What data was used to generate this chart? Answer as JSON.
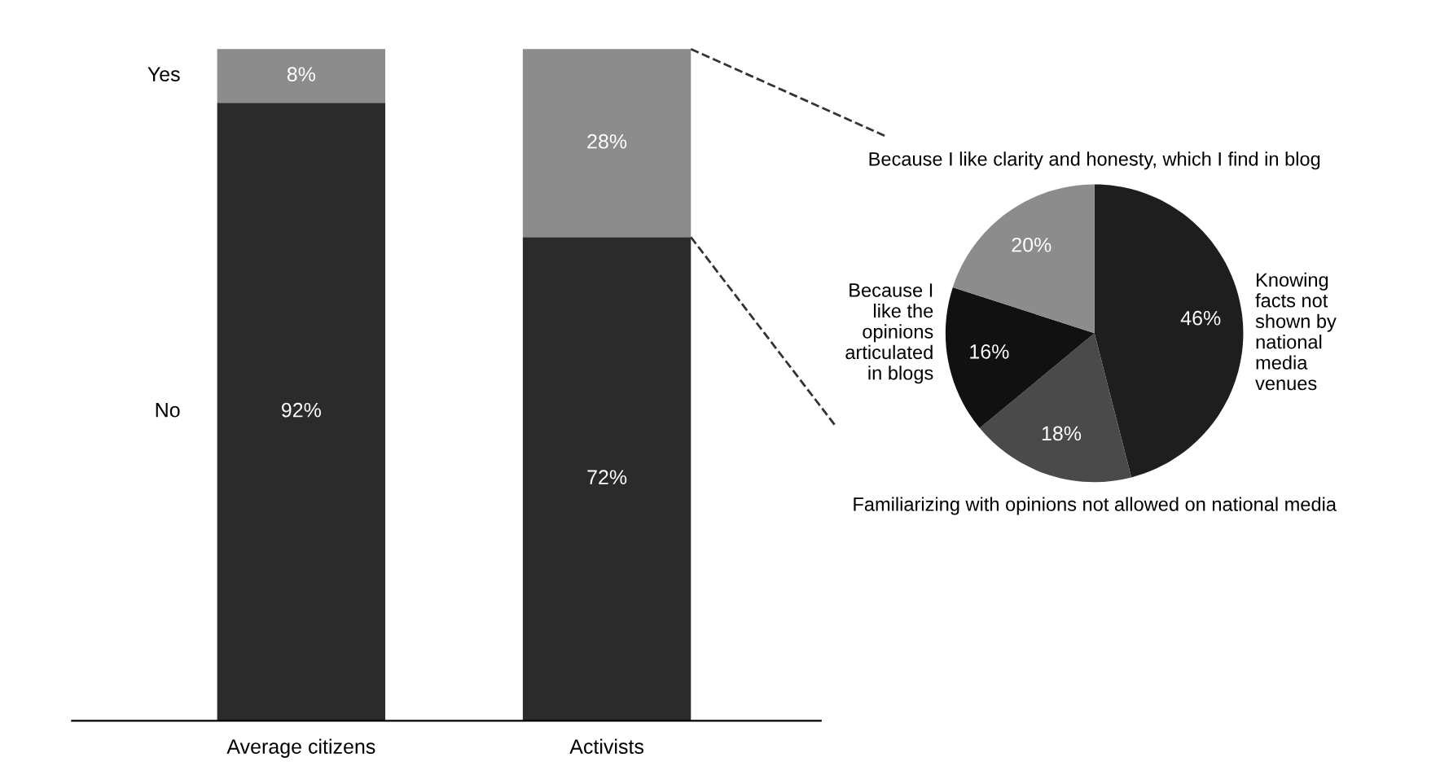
{
  "chart_data": [
    {
      "type": "bar",
      "stacked": true,
      "categories": [
        "Average citizens",
        "Activists"
      ],
      "series": [
        {
          "name": "No",
          "color": "#2b2b2b",
          "values": [
            92,
            72
          ],
          "value_labels": [
            "92%",
            "72%"
          ]
        },
        {
          "name": "Yes",
          "color": "#8c8c8c",
          "values": [
            8,
            28
          ],
          "value_labels": [
            "8%",
            "28%"
          ]
        }
      ],
      "legend": false,
      "grid": false
    },
    {
      "type": "pie",
      "categories": [
        "Knowing\nfacts not\nshown by\nnational\nmedia\nvenues",
        "Familiarizing with opinions not allowed on national media",
        "Because I\nlike the\nopinions\narticulated\nin blogs",
        "Because I like clarity and honesty, which I find in blog"
      ],
      "values": [
        46,
        18,
        16,
        20
      ],
      "value_labels": [
        "46%",
        "18%",
        "16%",
        "20%"
      ],
      "colors": [
        "#1e1e1e",
        "#4a4a4a",
        "#111111",
        "#8c8c8c"
      ],
      "legend": false
    }
  ]
}
